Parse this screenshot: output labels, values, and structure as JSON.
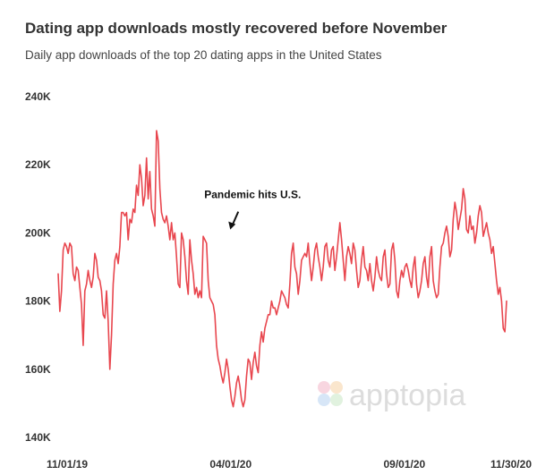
{
  "header": {
    "title": "Dating app downloads mostly recovered before November",
    "subtitle": "Daily app downloads of the top 20 dating apps in the United States"
  },
  "watermark": {
    "text": "apptopia",
    "icon": "apptopia-logo-icon"
  },
  "colors": {
    "line": "#e8464e",
    "text": "#333333",
    "watermark": "#dcdcdc"
  },
  "chart_data": {
    "type": "line",
    "title": "Dating app downloads mostly recovered before November",
    "subtitle": "Daily app downloads of the top 20 dating apps in the United States",
    "xlabel": "",
    "ylabel": "",
    "ylim": [
      140000,
      240000
    ],
    "yticks": [
      {
        "value": 240000,
        "label": "240K"
      },
      {
        "value": 220000,
        "label": "220K"
      },
      {
        "value": 200000,
        "label": "200K"
      },
      {
        "value": 180000,
        "label": "180K"
      },
      {
        "value": 160000,
        "label": "160K"
      },
      {
        "value": 140000,
        "label": "140K"
      }
    ],
    "xticks": [
      {
        "day": 0,
        "label": "11/01/19"
      },
      {
        "day": 152,
        "label": "04/01/20"
      },
      {
        "day": 305,
        "label": "09/01/20"
      },
      {
        "day": 395,
        "label": "11/30/20"
      }
    ],
    "grid": false,
    "annotations": [
      {
        "text": "Pandemic hits U.S.",
        "day": 150,
        "value": 201000
      }
    ],
    "series": [
      {
        "name": "Daily downloads",
        "x_start": "11/01/19",
        "values": [
          188000,
          177000,
          183000,
          195000,
          197000,
          196000,
          194000,
          197000,
          196000,
          188000,
          186000,
          190000,
          189000,
          184000,
          179000,
          167000,
          183000,
          185000,
          189000,
          186000,
          184000,
          187000,
          194000,
          192000,
          187000,
          186000,
          183000,
          176000,
          175000,
          183000,
          174000,
          160000,
          170000,
          185000,
          192000,
          194000,
          191000,
          196000,
          206000,
          206000,
          205000,
          206000,
          198000,
          204000,
          203000,
          207000,
          206000,
          214000,
          211000,
          220000,
          216000,
          208000,
          211000,
          222000,
          210000,
          218000,
          207000,
          205000,
          202000,
          230000,
          227000,
          213000,
          206000,
          204000,
          203000,
          205000,
          202000,
          198000,
          203000,
          198000,
          200000,
          193000,
          185000,
          184000,
          200000,
          198000,
          193000,
          186000,
          182000,
          198000,
          192000,
          188000,
          182000,
          184000,
          181000,
          183000,
          181000,
          199000,
          198000,
          197000,
          186000,
          181000,
          180000,
          179000,
          176000,
          167000,
          163000,
          161000,
          158000,
          156000,
          159000,
          163000,
          160000,
          155000,
          151000,
          149000,
          152000,
          156000,
          158000,
          155000,
          151000,
          149000,
          151000,
          158000,
          163000,
          162000,
          157000,
          162000,
          165000,
          161000,
          159000,
          167000,
          171000,
          168000,
          172000,
          174000,
          176000,
          176000,
          180000,
          178000,
          178000,
          176000,
          178000,
          180000,
          183000,
          182000,
          181000,
          179000,
          178000,
          185000,
          194000,
          197000,
          190000,
          188000,
          182000,
          186000,
          192000,
          193000,
          194000,
          193000,
          197000,
          191000,
          186000,
          190000,
          195000,
          197000,
          193000,
          190000,
          186000,
          190000,
          196000,
          197000,
          192000,
          190000,
          195000,
          196000,
          189000,
          193000,
          198000,
          203000,
          198000,
          192000,
          186000,
          193000,
          196000,
          194000,
          191000,
          197000,
          195000,
          189000,
          184000,
          186000,
          192000,
          196000,
          190000,
          189000,
          186000,
          191000,
          186000,
          183000,
          187000,
          193000,
          189000,
          187000,
          186000,
          193000,
          195000,
          188000,
          184000,
          185000,
          195000,
          197000,
          192000,
          183000,
          181000,
          186000,
          189000,
          187000,
          190000,
          191000,
          189000,
          186000,
          184000,
          190000,
          193000,
          185000,
          181000,
          183000,
          186000,
          191000,
          193000,
          187000,
          184000,
          193000,
          196000,
          186000,
          183000,
          181000,
          182000,
          190000,
          196000,
          197000,
          200000,
          202000,
          199000,
          193000,
          195000,
          204000,
          209000,
          206000,
          201000,
          204000,
          207000,
          213000,
          210000,
          201000,
          200000,
          205000,
          201000,
          202000,
          197000,
          200000,
          205000,
          208000,
          206000,
          199000,
          201000,
          203000,
          200000,
          198000,
          194000,
          196000,
          191000,
          186000,
          182000,
          184000,
          180000,
          172000,
          171000,
          180000
        ]
      }
    ]
  }
}
